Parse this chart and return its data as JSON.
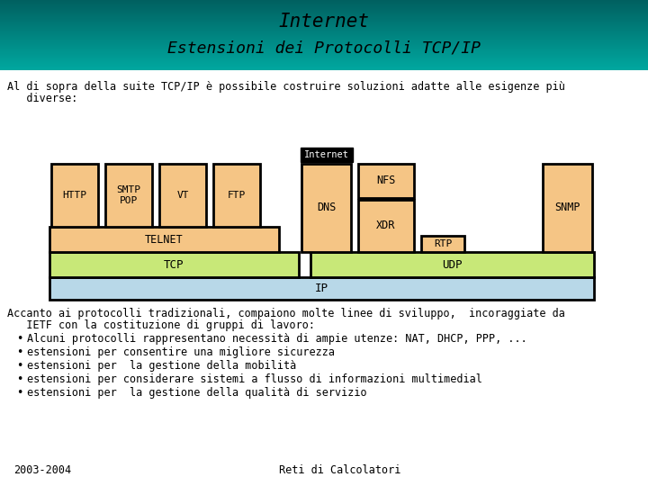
{
  "title_line1": "Internet",
  "title_line2": "Estensioni dei Protocolli TCP/IP",
  "title_bg_color1": "#006060",
  "title_bg_color2": "#00a8a0",
  "header_text1": "Al di sopra della suite TCP/IP è possibile costruire soluzioni adatte alle esigenze più",
  "header_text2": "   diverse:",
  "internet_label": "Internet",
  "box_orange_fill": "#f5c585",
  "box_green_fill": "#c8e878",
  "box_blue_fill": "#b8d8e8",
  "telnet_label": "TELNET",
  "tcp_label": "TCP",
  "udp_label": "UDP",
  "ip_label": "IP",
  "body_text1": "Accanto ai protocolli tradizionali, compaiono molte linee di sviluppo,  incoraggiate da",
  "body_text2": "   IETF con la costituzione di gruppi di lavoro:",
  "bullet_items": [
    "Alcuni protocolli rappresentano necessità di ampie utenze: NAT, DHCP, PPP, ...",
    "estensioni per consentire una migliore sicurezza",
    "estensioni per  la gestione della mobilità",
    "estensioni per considerare sistemi a flusso di informazioni multimedial",
    "estensioni per  la gestione della qualità di servizio"
  ],
  "footer_left": "2003-2004",
  "footer_right": "Reti di Calcolatori"
}
